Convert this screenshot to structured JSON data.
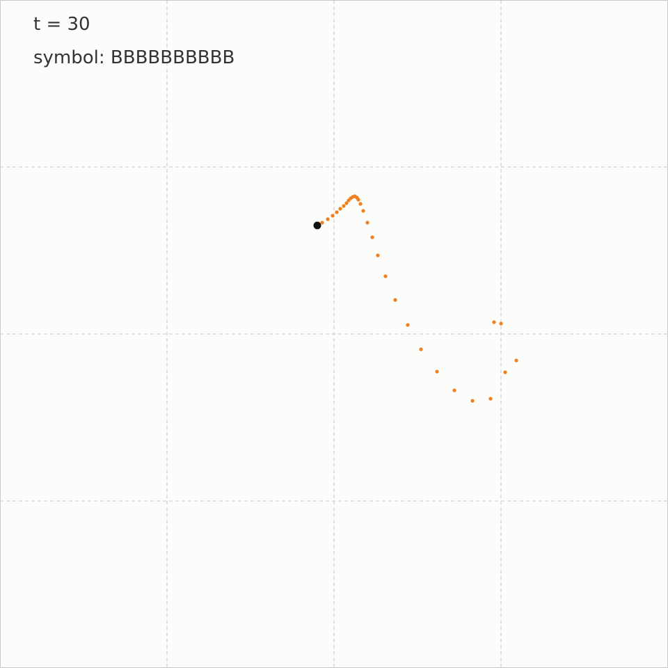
{
  "status": {
    "time_text": "t = 30",
    "symbol_text": "symbol: BBBBBBBBBB"
  },
  "colors": {
    "background": "#fcfcfb",
    "grid": "#c8c8d2",
    "trail": "#f07f1c",
    "head": "#111111",
    "text": "#333333"
  },
  "grid": {
    "style": "dashed",
    "divisions": 4
  },
  "trajectory": {
    "head": [
      456,
      324
    ],
    "trail": [
      [
        463,
        320
      ],
      [
        471,
        315
      ],
      [
        478,
        310
      ],
      [
        484,
        305
      ],
      [
        489,
        300
      ],
      [
        494,
        296
      ],
      [
        498,
        292
      ],
      [
        501,
        288
      ],
      [
        504,
        285
      ],
      [
        507,
        283
      ],
      [
        510,
        282
      ],
      [
        513,
        284
      ],
      [
        515,
        287
      ],
      [
        518,
        293
      ],
      [
        522,
        303
      ],
      [
        528,
        320
      ],
      [
        535,
        341
      ],
      [
        543,
        367
      ],
      [
        554,
        397
      ],
      [
        568,
        431
      ],
      [
        586,
        467
      ],
      [
        605,
        502
      ],
      [
        628,
        534
      ],
      [
        653,
        561
      ],
      [
        679,
        576
      ],
      [
        705,
        573
      ],
      [
        726,
        535
      ],
      [
        742,
        518
      ],
      [
        720,
        465
      ],
      [
        710,
        463
      ]
    ]
  }
}
